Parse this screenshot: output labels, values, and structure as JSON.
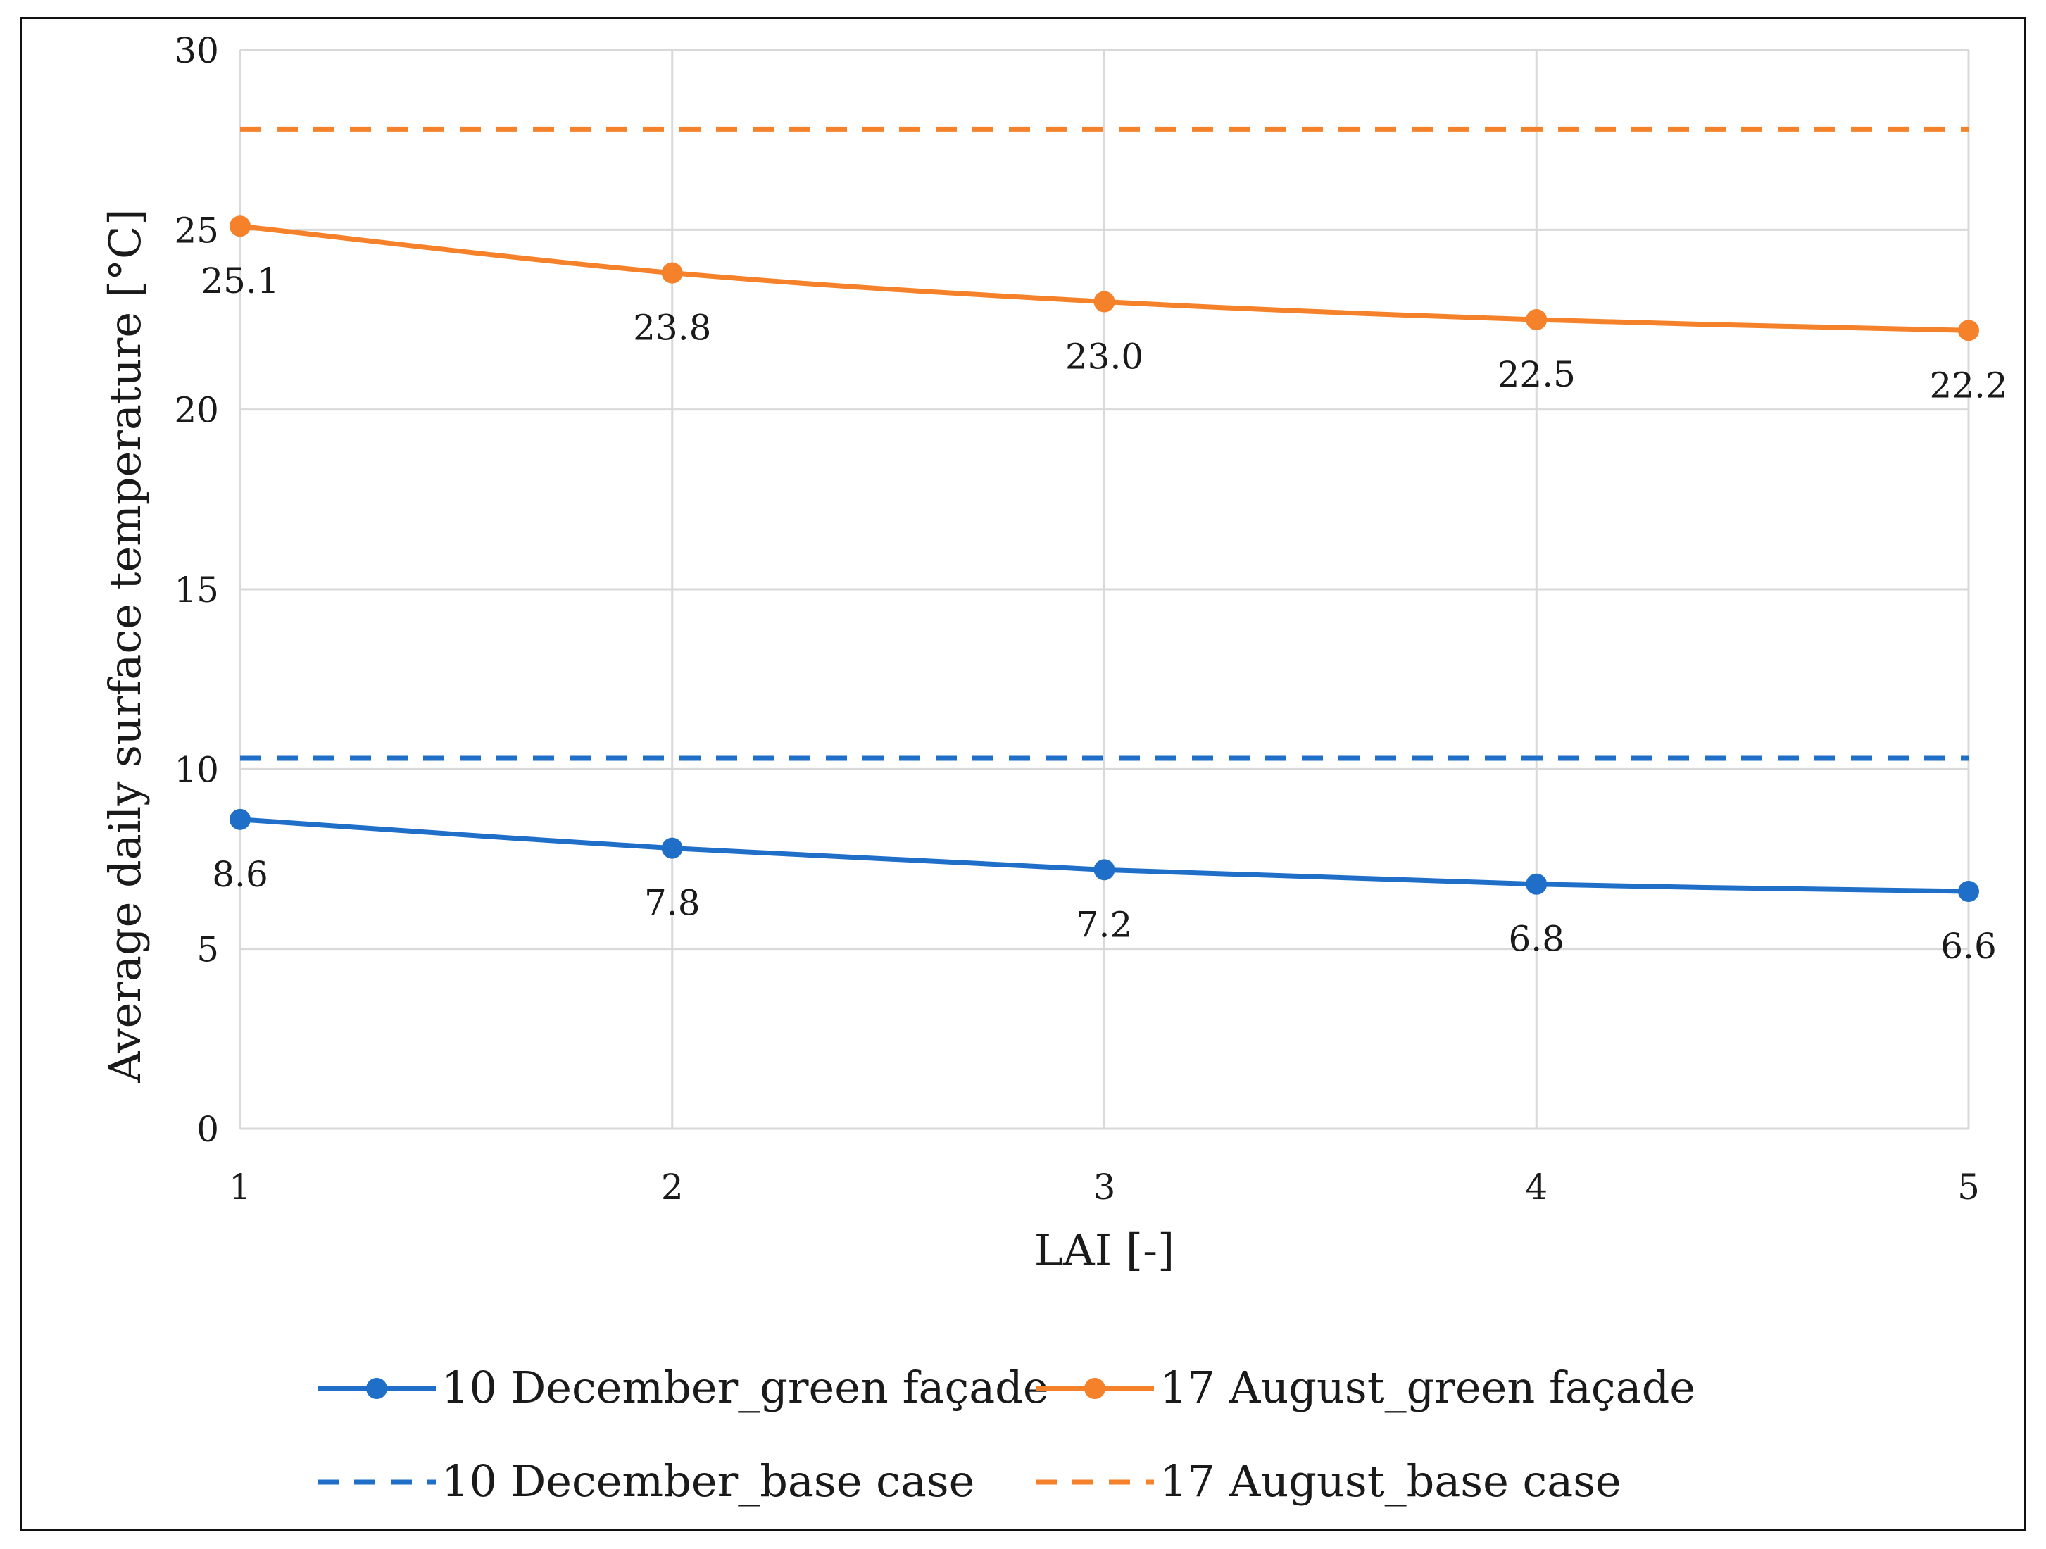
{
  "chart_data": {
    "type": "line",
    "title": "",
    "xlabel": "LAI [-]",
    "ylabel": "Average daily surface temperature [°C]",
    "x": [
      1,
      2,
      3,
      4,
      5
    ],
    "x_tick_labels": [
      "1",
      "2",
      "3",
      "4",
      "5"
    ],
    "ylim": [
      0,
      30
    ],
    "y_ticks": [
      0,
      5,
      10,
      15,
      20,
      25,
      30
    ],
    "y_tick_labels": [
      "0",
      "5",
      "10",
      "15",
      "20",
      "25",
      "30"
    ],
    "grid": true,
    "legend_position": "bottom",
    "series": [
      {
        "name": "10 December_green façade",
        "style": "solid-marker",
        "color": "#1f6fc9",
        "values": [
          8.6,
          7.8,
          7.2,
          6.8,
          6.6
        ],
        "labels": [
          "8.6",
          "7.8",
          "7.2",
          "6.8",
          "6.6"
        ]
      },
      {
        "name": "17 August_green façade",
        "style": "solid-marker",
        "color": "#f5822a",
        "values": [
          25.1,
          23.8,
          23.0,
          22.5,
          22.2
        ],
        "labels": [
          "25.1",
          "23.8",
          "23.0",
          "22.5",
          "22.2"
        ]
      },
      {
        "name": "10 December_base case",
        "style": "dashed",
        "color": "#1f6fc9",
        "values": [
          10.3,
          10.3,
          10.3,
          10.3,
          10.3
        ]
      },
      {
        "name": "17 August_base case",
        "style": "dashed",
        "color": "#f5822a",
        "values": [
          27.8,
          27.8,
          27.8,
          27.8,
          27.8
        ]
      }
    ]
  }
}
